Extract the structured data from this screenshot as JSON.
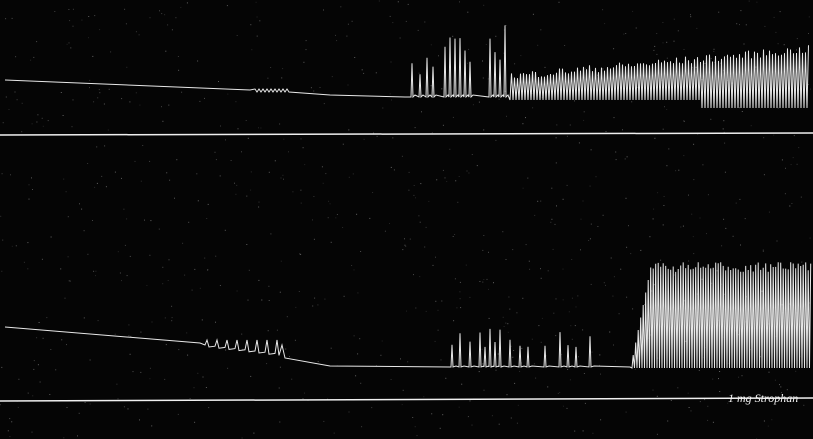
{
  "annotation": "1 mg Strophan"
}
